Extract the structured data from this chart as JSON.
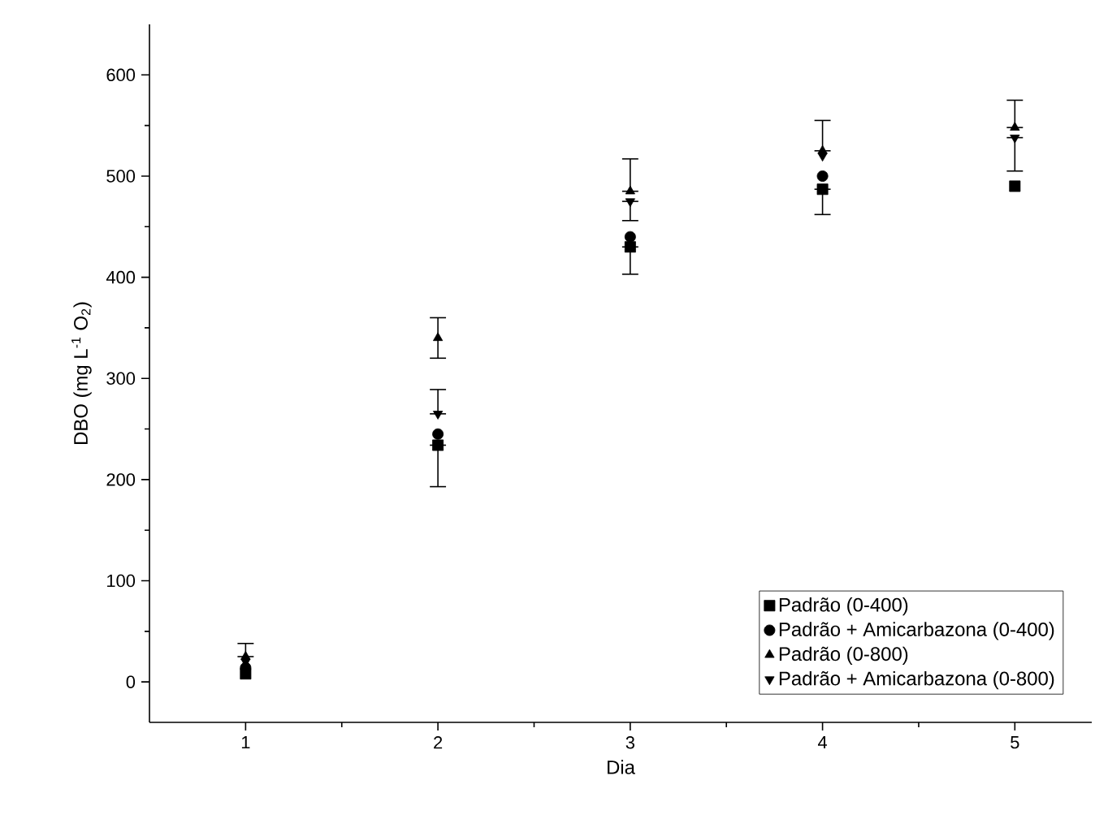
{
  "chart_data": {
    "type": "scatter",
    "xlabel": "Dia",
    "ylabel": "DBO (mg L$^{-1}$ O$_{2}$)",
    "x": [
      1,
      2,
      3,
      4,
      5
    ],
    "xlim": [
      0.5,
      5.4
    ],
    "xticks": [
      1,
      2,
      3,
      4,
      5
    ],
    "ylim": [
      -40,
      650
    ],
    "yticks": [
      0,
      100,
      200,
      300,
      400,
      500,
      600
    ],
    "legend": "bottom right",
    "grid": false,
    "series": [
      {
        "name": "Padrão (0-400)",
        "color": "#000000",
        "marker": "square",
        "values": [
          8,
          234,
          430,
          487,
          490
        ],
        "errors": [
          null,
          [
            193,
            234
          ],
          [
            403,
            430
          ],
          [
            462,
            487
          ],
          null
        ]
      },
      {
        "name": "Padrão + Amicarbazona (0-400)",
        "color": "#000000",
        "marker": "circle",
        "values": [
          14,
          245,
          440,
          500,
          null
        ],
        "errors": [
          null,
          null,
          null,
          null,
          null
        ]
      },
      {
        "name": "Padrão (0-800)",
        "color": "#000000",
        "marker": "triangle",
        "values": [
          25,
          340,
          485,
          525,
          548
        ],
        "errors": [
          [
            25,
            38
          ],
          [
            320,
            360
          ],
          [
            485,
            517
          ],
          [
            525,
            555
          ],
          [
            548,
            575
          ]
        ]
      },
      {
        "name": "Padrão + Amicarbazona (0-800)",
        "color": "#000000",
        "marker": "triangle-down",
        "values": [
          20,
          265,
          475,
          520,
          538
        ],
        "errors": [
          null,
          [
            265,
            289
          ],
          [
            456,
            475
          ],
          null,
          [
            505,
            538
          ]
        ]
      }
    ]
  }
}
